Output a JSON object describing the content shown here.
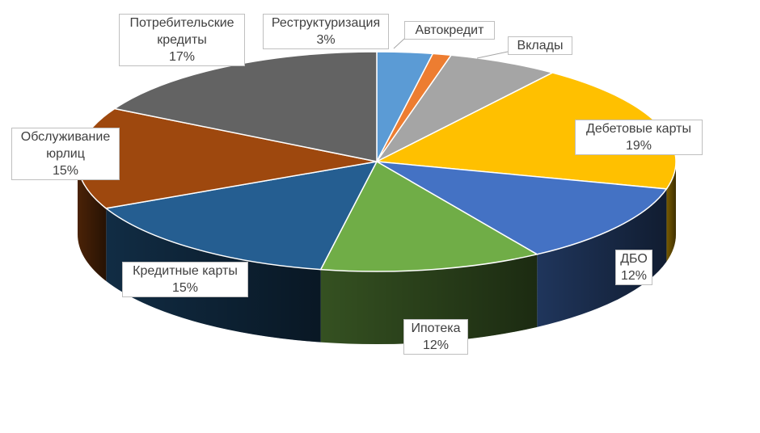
{
  "chart_data": {
    "type": "pie",
    "style": "3d",
    "title": "",
    "series": [
      {
        "values": [
          3,
          1,
          6,
          19,
          12,
          12,
          15,
          15,
          17
        ],
        "categories": [
          "Реструктуризация",
          "Автокредит",
          "Вклады",
          "Дебетовые карты",
          "ДБО",
          "Ипотека",
          "Кредитные карты",
          "Обслуживание юрлиц",
          "Потребительские кредиты"
        ]
      }
    ],
    "labels": [
      {
        "name": "Реструктуризация",
        "pct": "3%",
        "value": 3,
        "color": "#5B9BD5"
      },
      {
        "name": "Автокредит",
        "pct": "",
        "value": 1,
        "color": "#ED7D31"
      },
      {
        "name": "Вклады",
        "pct": "",
        "value": 6,
        "color": "#A5A5A5"
      },
      {
        "name": "Дебетовые карты",
        "pct": "19%",
        "value": 19,
        "color": "#FFC000"
      },
      {
        "name": "ДБО",
        "pct": "12%",
        "value": 12,
        "color": "#4472C4"
      },
      {
        "name": "Ипотека",
        "pct": "12%",
        "value": 12,
        "color": "#70AD47"
      },
      {
        "name": "Кредитные карты",
        "pct": "15%",
        "value": 15,
        "color": "#255E91"
      },
      {
        "name": "Обслуживание юрлиц",
        "pct": "15%",
        "value": 15,
        "color": "#9E480E"
      },
      {
        "name": "Потребительские кредиты",
        "pct": "17%",
        "value": 17,
        "color": "#636363"
      }
    ],
    "legend": "none"
  }
}
